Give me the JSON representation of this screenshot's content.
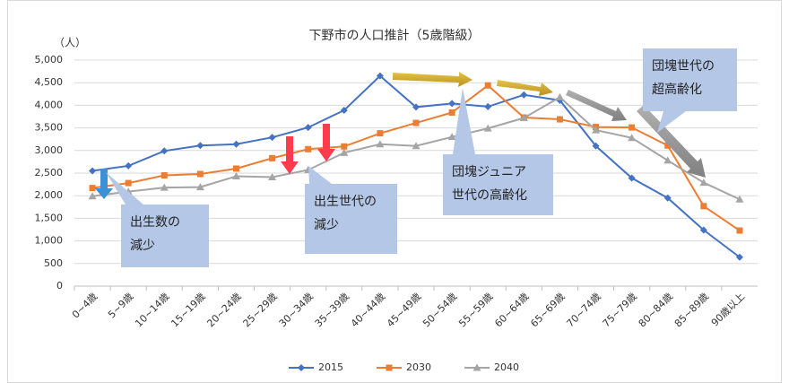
{
  "chart_data": {
    "type": "line",
    "title": "下野市の人口推計（5歳階級）",
    "y_unit": "（人）",
    "categories": [
      "0~4歳",
      "5~9歳",
      "10~14歳",
      "15~19歳",
      "20~24歳",
      "25~29歳",
      "30~34歳",
      "35~39歳",
      "40~44歳",
      "45~49歳",
      "50~54歳",
      "55~59歳",
      "60~64歳",
      "65~69歳",
      "70~74歳",
      "75~79歳",
      "80~84歳",
      "85~89歳",
      "90歳以上"
    ],
    "series": [
      {
        "name": "2015",
        "color": "#4472c4",
        "marker": "diamond",
        "values": [
          2550,
          2660,
          2990,
          3110,
          3140,
          3290,
          3510,
          3890,
          4650,
          3960,
          4040,
          3970,
          4230,
          4110,
          3100,
          2390,
          1950,
          1240,
          640
        ]
      },
      {
        "name": "2030",
        "color": "#ed7d31",
        "marker": "square",
        "values": [
          2170,
          2280,
          2450,
          2480,
          2600,
          2830,
          3030,
          3090,
          3380,
          3610,
          3840,
          4440,
          3730,
          3690,
          3520,
          3510,
          3110,
          1770,
          1230
        ]
      },
      {
        "name": "2040",
        "color": "#a5a5a5",
        "marker": "triangle",
        "values": [
          1990,
          2090,
          2180,
          2190,
          2430,
          2410,
          2570,
          2950,
          3140,
          3100,
          3300,
          3490,
          3720,
          4180,
          3450,
          3280,
          2780,
          2290,
          1920
        ]
      }
    ],
    "ylim": [
      0,
      5000
    ],
    "yticks": [
      0,
      {
        "value": 500,
        "label": "500"
      },
      {
        "value": 1000,
        "label": "1,000"
      },
      {
        "value": 1500,
        "label": "1,500"
      },
      {
        "value": 2000,
        "label": "2,000"
      },
      {
        "value": 2500,
        "label": "2,500"
      },
      {
        "value": 3000,
        "label": "3,000"
      },
      {
        "value": 3500,
        "label": "3,500"
      },
      {
        "value": 4000,
        "label": "4,000"
      },
      {
        "value": 4500,
        "label": "4,500"
      },
      {
        "value": 5000,
        "label": "5,000"
      }
    ],
    "grid": true,
    "legend": "bottom",
    "annotations": [
      {
        "lines": [
          "出生数の",
          "減少"
        ]
      },
      {
        "lines": [
          "出生世代の",
          "減少"
        ]
      },
      {
        "lines": [
          "団塊ジュニア",
          "世代の高齢化"
        ]
      },
      {
        "lines": [
          "団塊世代の",
          "超高齢化"
        ]
      }
    ]
  }
}
